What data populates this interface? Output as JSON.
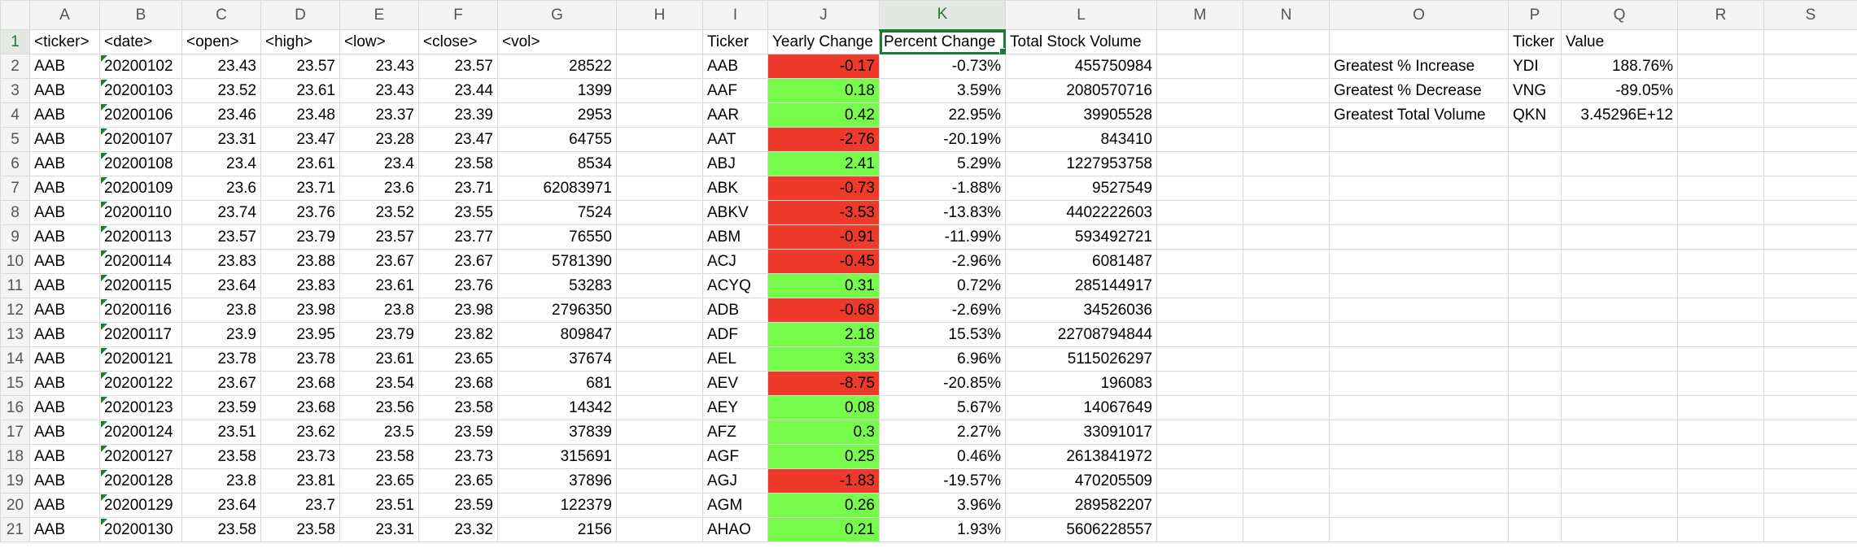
{
  "columns": [
    "A",
    "B",
    "C",
    "D",
    "E",
    "F",
    "G",
    "H",
    "I",
    "J",
    "K",
    "L",
    "M",
    "N",
    "O",
    "P",
    "Q",
    "R",
    "S"
  ],
  "header_row": {
    "num": "1",
    "A": "<ticker>",
    "B": "<date>",
    "C": "<open>",
    "D": "<high>",
    "E": "<low>",
    "F": "<close>",
    "G": "<vol>",
    "I": "Ticker",
    "J": "Yearly Change",
    "K": "Percent Change",
    "L": "Total Stock Volume",
    "P": "Ticker",
    "Q": "Value"
  },
  "rows": [
    {
      "num": "2",
      "A": "AAB",
      "B": "20200102",
      "C": "23.43",
      "D": "23.57",
      "E": "23.43",
      "F": "23.57",
      "G": "28522",
      "I": "AAB",
      "J": "-0.17",
      "K": "-0.73%",
      "L": "455750984",
      "O": "Greatest % Increase",
      "P": "YDI",
      "Q": "188.76%"
    },
    {
      "num": "3",
      "A": "AAB",
      "B": "20200103",
      "C": "23.52",
      "D": "23.61",
      "E": "23.43",
      "F": "23.44",
      "G": "1399",
      "I": "AAF",
      "J": "0.18",
      "K": "3.59%",
      "L": "2080570716",
      "O": "Greatest % Decrease",
      "P": "VNG",
      "Q": "-89.05%"
    },
    {
      "num": "4",
      "A": "AAB",
      "B": "20200106",
      "C": "23.46",
      "D": "23.48",
      "E": "23.37",
      "F": "23.39",
      "G": "2953",
      "I": "AAR",
      "J": "0.42",
      "K": "22.95%",
      "L": "39905528",
      "O": "Greatest Total Volume",
      "P": "QKN",
      "Q": "3.45296E+12"
    },
    {
      "num": "5",
      "A": "AAB",
      "B": "20200107",
      "C": "23.31",
      "D": "23.47",
      "E": "23.28",
      "F": "23.47",
      "G": "64755",
      "I": "AAT",
      "J": "-2.76",
      "K": "-20.19%",
      "L": "843410"
    },
    {
      "num": "6",
      "A": "AAB",
      "B": "20200108",
      "C": "23.4",
      "D": "23.61",
      "E": "23.4",
      "F": "23.58",
      "G": "8534",
      "I": "ABJ",
      "J": "2.41",
      "K": "5.29%",
      "L": "1227953758"
    },
    {
      "num": "7",
      "A": "AAB",
      "B": "20200109",
      "C": "23.6",
      "D": "23.71",
      "E": "23.6",
      "F": "23.71",
      "G": "62083971",
      "I": "ABK",
      "J": "-0.73",
      "K": "-1.88%",
      "L": "9527549"
    },
    {
      "num": "8",
      "A": "AAB",
      "B": "20200110",
      "C": "23.74",
      "D": "23.76",
      "E": "23.52",
      "F": "23.55",
      "G": "7524",
      "I": "ABKV",
      "J": "-3.53",
      "K": "-13.83%",
      "L": "4402222603"
    },
    {
      "num": "9",
      "A": "AAB",
      "B": "20200113",
      "C": "23.57",
      "D": "23.79",
      "E": "23.57",
      "F": "23.77",
      "G": "76550",
      "I": "ABM",
      "J": "-0.91",
      "K": "-11.99%",
      "L": "593492721"
    },
    {
      "num": "10",
      "A": "AAB",
      "B": "20200114",
      "C": "23.83",
      "D": "23.88",
      "E": "23.67",
      "F": "23.67",
      "G": "5781390",
      "I": "ACJ",
      "J": "-0.45",
      "K": "-2.96%",
      "L": "6081487"
    },
    {
      "num": "11",
      "A": "AAB",
      "B": "20200115",
      "C": "23.64",
      "D": "23.83",
      "E": "23.61",
      "F": "23.76",
      "G": "53283",
      "I": "ACYQ",
      "J": "0.31",
      "K": "0.72%",
      "L": "285144917"
    },
    {
      "num": "12",
      "A": "AAB",
      "B": "20200116",
      "C": "23.8",
      "D": "23.98",
      "E": "23.8",
      "F": "23.98",
      "G": "2796350",
      "I": "ADB",
      "J": "-0.68",
      "K": "-2.69%",
      "L": "34526036"
    },
    {
      "num": "13",
      "A": "AAB",
      "B": "20200117",
      "C": "23.9",
      "D": "23.95",
      "E": "23.79",
      "F": "23.82",
      "G": "809847",
      "I": "ADF",
      "J": "2.18",
      "K": "15.53%",
      "L": "22708794844"
    },
    {
      "num": "14",
      "A": "AAB",
      "B": "20200121",
      "C": "23.78",
      "D": "23.78",
      "E": "23.61",
      "F": "23.65",
      "G": "37674",
      "I": "AEL",
      "J": "3.33",
      "K": "6.96%",
      "L": "5115026297"
    },
    {
      "num": "15",
      "A": "AAB",
      "B": "20200122",
      "C": "23.67",
      "D": "23.68",
      "E": "23.54",
      "F": "23.68",
      "G": "681",
      "I": "AEV",
      "J": "-8.75",
      "K": "-20.85%",
      "L": "196083"
    },
    {
      "num": "16",
      "A": "AAB",
      "B": "20200123",
      "C": "23.59",
      "D": "23.68",
      "E": "23.56",
      "F": "23.58",
      "G": "14342",
      "I": "AEY",
      "J": "0.08",
      "K": "5.67%",
      "L": "14067649"
    },
    {
      "num": "17",
      "A": "AAB",
      "B": "20200124",
      "C": "23.51",
      "D": "23.62",
      "E": "23.5",
      "F": "23.59",
      "G": "37839",
      "I": "AFZ",
      "J": "0.3",
      "K": "2.27%",
      "L": "33091017"
    },
    {
      "num": "18",
      "A": "AAB",
      "B": "20200127",
      "C": "23.58",
      "D": "23.73",
      "E": "23.58",
      "F": "23.73",
      "G": "315691",
      "I": "AGF",
      "J": "0.25",
      "K": "0.46%",
      "L": "2613841972"
    },
    {
      "num": "19",
      "A": "AAB",
      "B": "20200128",
      "C": "23.8",
      "D": "23.81",
      "E": "23.65",
      "F": "23.65",
      "G": "37896",
      "I": "AGJ",
      "J": "-1.83",
      "K": "-19.57%",
      "L": "470205509"
    },
    {
      "num": "20",
      "A": "AAB",
      "B": "20200129",
      "C": "23.64",
      "D": "23.7",
      "E": "23.51",
      "F": "23.59",
      "G": "122379",
      "I": "AGM",
      "J": "0.26",
      "K": "3.96%",
      "L": "289582207"
    },
    {
      "num": "21",
      "A": "AAB",
      "B": "20200130",
      "C": "23.58",
      "D": "23.58",
      "E": "23.31",
      "F": "23.32",
      "G": "2156",
      "I": "AHAO",
      "J": "0.21",
      "K": "1.93%",
      "L": "5606228557"
    }
  ],
  "colors": {
    "positive_fill": "#76fb4b",
    "negative_fill": "#ed3a2a",
    "selection_accent": "#1e7b34"
  },
  "selected_cell": "K1"
}
